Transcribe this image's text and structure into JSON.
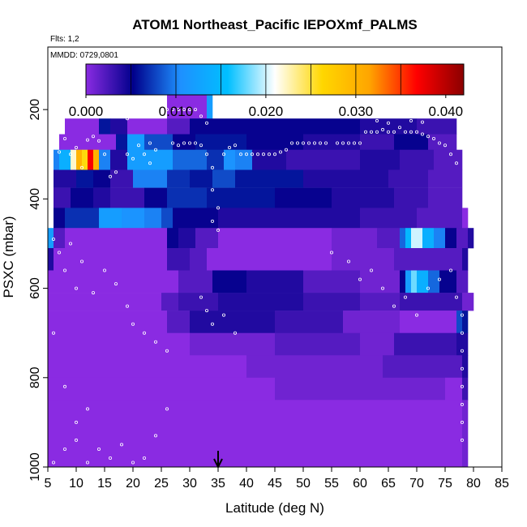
{
  "chart_data": {
    "type": "heatmap",
    "title": "ATOM1 Northeast_Pacific IEPOXmf_PALMS",
    "subtitle_flights": "Flts: 1,2",
    "subtitle_dates": "MMDD: 0729,0801",
    "xlabel": "Latitude (deg N)",
    "ylabel": "PSXC (mbar)",
    "xlim": [
      5,
      85
    ],
    "ylim": [
      1000,
      60
    ],
    "x_ticks": [
      "5",
      "10",
      "15",
      "20",
      "25",
      "30",
      "35",
      "40",
      "45",
      "50",
      "55",
      "60",
      "65",
      "70",
      "75",
      "80",
      "85"
    ],
    "y_ticks": [
      "200",
      "400",
      "600",
      "800",
      "1000"
    ],
    "colorbar": {
      "range": [
        0,
        0.042
      ],
      "tick_values": [
        0,
        0.01,
        0.02,
        0.03,
        0.04
      ],
      "tick_labels": [
        "0.000",
        "0.010",
        "0.020",
        "0.030",
        "0.040"
      ],
      "colors": [
        "#8a2be2",
        "#00008b",
        "#1e90ff",
        "#00bfff",
        "#ffffff",
        "#ffd700",
        "#ffa500",
        "#ff0000",
        "#8b0000"
      ]
    },
    "marker_latitude": 35,
    "layers": [
      {
        "p_top": 160,
        "p_bot": 220,
        "segments": [
          [
            26,
            33,
            0.0
          ],
          [
            33,
            34,
            0.012
          ]
        ]
      },
      {
        "p_top": 220,
        "p_bot": 255,
        "segments": [
          [
            8,
            14,
            0.0
          ],
          [
            14,
            16,
            0.006
          ],
          [
            16,
            19,
            0.004
          ],
          [
            19,
            26,
            0.0
          ],
          [
            26,
            30,
            0.002
          ],
          [
            30,
            60,
            0.005
          ],
          [
            60,
            70,
            0.004
          ],
          [
            70,
            77,
            0.003
          ]
        ]
      },
      {
        "p_top": 255,
        "p_bot": 290,
        "segments": [
          [
            7,
            17,
            0.0
          ],
          [
            17,
            19,
            0.006
          ],
          [
            19,
            22,
            0.012
          ],
          [
            22,
            27,
            0.008
          ],
          [
            27,
            31,
            0.005
          ],
          [
            31,
            40,
            0.006
          ],
          [
            40,
            50,
            0.005
          ],
          [
            50,
            60,
            0.004
          ],
          [
            60,
            66,
            0.003
          ],
          [
            66,
            72,
            0.005
          ],
          [
            72,
            77,
            0.002
          ]
        ]
      },
      {
        "p_top": 290,
        "p_bot": 335,
        "segments": [
          [
            6,
            7,
            0.01
          ],
          [
            7,
            9,
            0.014
          ],
          [
            9,
            10,
            0.022
          ],
          [
            10,
            11,
            0.03
          ],
          [
            11,
            12,
            0.026
          ],
          [
            12,
            13,
            0.037
          ],
          [
            13,
            14,
            0.03
          ],
          [
            14,
            16,
            0.01
          ],
          [
            16,
            19,
            0.004
          ],
          [
            19,
            27,
            0.012
          ],
          [
            27,
            33,
            0.009
          ],
          [
            33,
            36,
            0.007
          ],
          [
            36,
            38,
            0.011
          ],
          [
            38,
            41,
            0.01
          ],
          [
            41,
            47,
            0.004
          ],
          [
            47,
            60,
            0.003
          ],
          [
            60,
            67,
            0.004
          ],
          [
            67,
            73,
            0.003
          ],
          [
            73,
            78,
            0.002
          ]
        ]
      },
      {
        "p_top": 335,
        "p_bot": 375,
        "segments": [
          [
            6,
            10,
            0.004
          ],
          [
            10,
            13,
            0.006
          ],
          [
            13,
            16,
            0.005
          ],
          [
            16,
            20,
            0.003
          ],
          [
            20,
            26,
            0.01
          ],
          [
            26,
            30,
            0.007
          ],
          [
            30,
            34,
            0.006
          ],
          [
            34,
            38,
            0.008
          ],
          [
            38,
            50,
            0.006
          ],
          [
            50,
            65,
            0.004
          ],
          [
            65,
            72,
            0.003
          ],
          [
            72,
            78,
            0.002
          ]
        ]
      },
      {
        "p_top": 375,
        "p_bot": 420,
        "segments": [
          [
            6,
            9,
            0.003
          ],
          [
            9,
            13,
            0.005
          ],
          [
            13,
            16,
            0.004
          ],
          [
            16,
            22,
            0.003
          ],
          [
            22,
            26,
            0.005
          ],
          [
            26,
            33,
            0.007
          ],
          [
            33,
            37,
            0.006
          ],
          [
            37,
            45,
            0.006
          ],
          [
            45,
            55,
            0.005
          ],
          [
            55,
            66,
            0.004
          ],
          [
            66,
            72,
            0.003
          ],
          [
            72,
            78,
            0.002
          ]
        ]
      },
      {
        "p_top": 420,
        "p_bot": 465,
        "segments": [
          [
            6,
            8,
            0.005
          ],
          [
            8,
            14,
            0.007
          ],
          [
            14,
            18,
            0.012
          ],
          [
            18,
            22,
            0.011
          ],
          [
            22,
            25,
            0.01
          ],
          [
            25,
            27,
            0.008
          ],
          [
            27,
            35,
            0.005
          ],
          [
            35,
            45,
            0.004
          ],
          [
            45,
            60,
            0.004
          ],
          [
            60,
            70,
            0.003
          ],
          [
            70,
            78,
            0.002
          ],
          [
            78,
            79,
            0.0
          ]
        ]
      },
      {
        "p_top": 465,
        "p_bot": 510,
        "segments": [
          [
            5,
            6,
            0.012
          ],
          [
            6,
            8,
            0.002
          ],
          [
            8,
            26,
            0.0
          ],
          [
            26,
            28,
            0.005
          ],
          [
            28,
            31,
            0.004
          ],
          [
            31,
            35,
            0.002
          ],
          [
            35,
            55,
            0.0
          ],
          [
            55,
            63,
            0.001
          ],
          [
            63,
            67,
            0.002
          ],
          [
            67,
            68,
            0.009
          ],
          [
            68,
            69,
            0.015
          ],
          [
            69,
            71,
            0.02
          ],
          [
            71,
            73,
            0.014
          ],
          [
            73,
            75,
            0.01
          ],
          [
            75,
            77,
            0.005
          ],
          [
            77,
            79,
            0.002
          ],
          [
            79,
            80,
            0.004
          ]
        ]
      },
      {
        "p_top": 510,
        "p_bot": 560,
        "segments": [
          [
            5,
            6,
            0.004
          ],
          [
            6,
            26,
            0.0
          ],
          [
            26,
            30,
            0.003
          ],
          [
            30,
            33,
            0.002
          ],
          [
            33,
            55,
            0.0
          ],
          [
            55,
            66,
            0.001
          ],
          [
            66,
            78,
            0.002
          ],
          [
            78,
            79,
            0.004
          ]
        ]
      },
      {
        "p_top": 560,
        "p_bot": 610,
        "segments": [
          [
            5,
            28,
            0.0
          ],
          [
            28,
            34,
            0.002
          ],
          [
            34,
            40,
            0.005
          ],
          [
            40,
            50,
            0.004
          ],
          [
            50,
            60,
            0.002
          ],
          [
            60,
            67,
            0.001
          ],
          [
            67,
            68,
            0.005
          ],
          [
            68,
            69,
            0.012
          ],
          [
            69,
            70,
            0.018
          ],
          [
            70,
            72,
            0.014
          ],
          [
            72,
            74,
            0.009
          ],
          [
            74,
            77,
            0.005
          ],
          [
            77,
            79,
            0.002
          ]
        ]
      },
      {
        "p_top": 610,
        "p_bot": 650,
        "segments": [
          [
            5,
            25,
            0.0
          ],
          [
            25,
            28,
            0.002
          ],
          [
            28,
            35,
            0.003
          ],
          [
            35,
            50,
            0.004
          ],
          [
            50,
            60,
            0.003
          ],
          [
            60,
            67,
            0.002
          ],
          [
            67,
            78,
            0.003
          ],
          [
            78,
            80,
            0.001
          ]
        ]
      },
      {
        "p_top": 650,
        "p_bot": 700,
        "segments": [
          [
            5,
            26,
            0.0
          ],
          [
            26,
            30,
            0.002
          ],
          [
            30,
            45,
            0.004
          ],
          [
            45,
            57,
            0.003
          ],
          [
            57,
            67,
            0.001
          ],
          [
            67,
            77,
            0.0
          ],
          [
            77,
            78,
            0.008
          ],
          [
            78,
            79,
            0.006
          ]
        ]
      },
      {
        "p_top": 700,
        "p_bot": 750,
        "segments": [
          [
            5,
            30,
            0.0
          ],
          [
            30,
            45,
            0.001
          ],
          [
            45,
            60,
            0.002
          ],
          [
            60,
            66,
            0.001
          ],
          [
            66,
            77,
            0.003
          ],
          [
            77,
            79,
            0.004
          ]
        ]
      },
      {
        "p_top": 750,
        "p_bot": 800,
        "segments": [
          [
            5,
            40,
            0.0
          ],
          [
            40,
            55,
            0.001
          ],
          [
            55,
            64,
            0.001
          ],
          [
            64,
            78,
            0.002
          ],
          [
            78,
            79,
            0.004
          ]
        ]
      },
      {
        "p_top": 800,
        "p_bot": 850,
        "segments": [
          [
            5,
            45,
            0.0
          ],
          [
            45,
            60,
            0.001
          ],
          [
            60,
            75,
            0.001
          ],
          [
            75,
            78,
            0.0
          ],
          [
            78,
            79,
            0.003
          ]
        ]
      },
      {
        "p_top": 850,
        "p_bot": 1000,
        "segments": [
          [
            5,
            78,
            0.0
          ],
          [
            78,
            79,
            0.001
          ]
        ]
      }
    ],
    "points": [
      [
        7,
        295
      ],
      [
        8,
        265
      ],
      [
        9,
        300
      ],
      [
        10,
        285
      ],
      [
        11,
        330
      ],
      [
        12,
        268
      ],
      [
        13,
        260
      ],
      [
        14,
        270
      ],
      [
        15,
        300
      ],
      [
        16,
        350
      ],
      [
        17,
        340
      ],
      [
        19,
        220
      ],
      [
        19,
        300
      ],
      [
        20,
        310
      ],
      [
        21,
        280
      ],
      [
        22,
        300
      ],
      [
        23,
        320
      ],
      [
        23,
        275
      ],
      [
        24,
        290
      ],
      [
        26,
        200
      ],
      [
        27,
        200
      ],
      [
        28,
        200
      ],
      [
        29,
        200
      ],
      [
        30,
        200
      ],
      [
        31,
        200
      ],
      [
        32,
        215
      ],
      [
        33,
        230
      ],
      [
        27,
        275
      ],
      [
        28,
        280
      ],
      [
        29,
        275
      ],
      [
        30,
        275
      ],
      [
        31,
        275
      ],
      [
        32,
        280
      ],
      [
        33,
        300
      ],
      [
        34,
        330
      ],
      [
        34,
        380
      ],
      [
        35,
        420
      ],
      [
        35,
        470
      ],
      [
        34,
        450
      ],
      [
        36,
        300
      ],
      [
        37,
        285
      ],
      [
        38,
        280
      ],
      [
        39,
        300
      ],
      [
        40,
        300
      ],
      [
        41,
        300
      ],
      [
        42,
        300
      ],
      [
        43,
        300
      ],
      [
        44,
        300
      ],
      [
        45,
        300
      ],
      [
        46,
        295
      ],
      [
        47,
        290
      ],
      [
        48,
        275
      ],
      [
        49,
        275
      ],
      [
        50,
        275
      ],
      [
        51,
        275
      ],
      [
        52,
        275
      ],
      [
        53,
        275
      ],
      [
        54,
        275
      ],
      [
        56,
        275
      ],
      [
        57,
        275
      ],
      [
        58,
        275
      ],
      [
        59,
        275
      ],
      [
        60,
        275
      ],
      [
        61,
        250
      ],
      [
        62,
        250
      ],
      [
        63,
        250
      ],
      [
        64,
        245
      ],
      [
        65,
        250
      ],
      [
        66,
        250
      ],
      [
        67,
        240
      ],
      [
        68,
        250
      ],
      [
        69,
        250
      ],
      [
        70,
        250
      ],
      [
        71,
        255
      ],
      [
        72,
        260
      ],
      [
        73,
        265
      ],
      [
        74,
        275
      ],
      [
        75,
        280
      ],
      [
        76,
        300
      ],
      [
        77,
        320
      ],
      [
        63,
        225
      ],
      [
        65,
        230
      ],
      [
        67,
        215
      ],
      [
        69,
        225
      ],
      [
        71,
        228
      ],
      [
        6,
        490
      ],
      [
        7,
        520
      ],
      [
        8,
        560
      ],
      [
        9,
        500
      ],
      [
        10,
        600
      ],
      [
        11,
        540
      ],
      [
        13,
        610
      ],
      [
        15,
        560
      ],
      [
        17,
        590
      ],
      [
        19,
        640
      ],
      [
        20,
        680
      ],
      [
        22,
        700
      ],
      [
        24,
        720
      ],
      [
        26,
        740
      ],
      [
        6,
        700
      ],
      [
        8,
        820
      ],
      [
        10,
        900
      ],
      [
        12,
        870
      ],
      [
        14,
        960
      ],
      [
        16,
        980
      ],
      [
        18,
        950
      ],
      [
        20,
        990
      ],
      [
        22,
        980
      ],
      [
        24,
        930
      ],
      [
        26,
        870
      ],
      [
        6,
        990
      ],
      [
        8,
        960
      ],
      [
        10,
        940
      ],
      [
        12,
        990
      ],
      [
        55,
        520
      ],
      [
        58,
        540
      ],
      [
        60,
        580
      ],
      [
        62,
        560
      ],
      [
        64,
        600
      ],
      [
        66,
        640
      ],
      [
        68,
        620
      ],
      [
        70,
        660
      ],
      [
        72,
        600
      ],
      [
        74,
        580
      ],
      [
        76,
        560
      ],
      [
        77,
        620
      ],
      [
        78,
        660
      ],
      [
        78,
        700
      ],
      [
        78,
        740
      ],
      [
        78,
        780
      ],
      [
        78,
        820
      ],
      [
        78,
        860
      ],
      [
        78,
        900
      ],
      [
        78,
        940
      ],
      [
        32,
        620
      ],
      [
        33,
        650
      ],
      [
        34,
        680
      ],
      [
        36,
        660
      ],
      [
        38,
        700
      ]
    ]
  }
}
